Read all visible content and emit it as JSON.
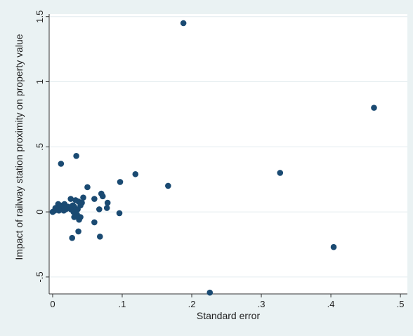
{
  "chart_data": {
    "type": "scatter",
    "title": "",
    "xlabel": "Standard error",
    "ylabel": "Impact of railway station proximity on property value",
    "xlim": [
      -0.005,
      0.51
    ],
    "ylim": [
      -0.63,
      1.52
    ],
    "x_ticks": [
      0,
      0.1,
      0.2,
      0.3,
      0.4,
      0.5
    ],
    "x_tick_labels": [
      "0",
      ".1",
      ".2",
      ".3",
      ".4",
      ".5"
    ],
    "y_ticks": [
      -0.5,
      0,
      0.5,
      1,
      1.5
    ],
    "y_tick_labels": [
      "-.5",
      "0",
      ".5",
      "1",
      "1.5"
    ],
    "grid": "horizontal",
    "marker_color": "#1a4a72",
    "plot_background": "#ffffff",
    "background": "#eaf2f3",
    "gridline_color": "#e4ecef",
    "points": [
      {
        "x": 0.188,
        "y": 1.45
      },
      {
        "x": 0.462,
        "y": 0.8
      },
      {
        "x": 0.034,
        "y": 0.43
      },
      {
        "x": 0.012,
        "y": 0.37
      },
      {
        "x": 0.327,
        "y": 0.3
      },
      {
        "x": 0.119,
        "y": 0.29
      },
      {
        "x": 0.097,
        "y": 0.23
      },
      {
        "x": 0.166,
        "y": 0.2
      },
      {
        "x": 0.05,
        "y": 0.19
      },
      {
        "x": 0.07,
        "y": 0.14
      },
      {
        "x": 0.072,
        "y": 0.12
      },
      {
        "x": 0.044,
        "y": 0.11
      },
      {
        "x": 0.06,
        "y": 0.1
      },
      {
        "x": 0.026,
        "y": 0.1
      },
      {
        "x": 0.033,
        "y": 0.09
      },
      {
        "x": 0.037,
        "y": 0.08
      },
      {
        "x": 0.079,
        "y": 0.07
      },
      {
        "x": 0.042,
        "y": 0.07
      },
      {
        "x": 0.008,
        "y": 0.06
      },
      {
        "x": 0.017,
        "y": 0.06
      },
      {
        "x": 0.029,
        "y": 0.05
      },
      {
        "x": 0.04,
        "y": 0.05
      },
      {
        "x": 0.011,
        "y": 0.05
      },
      {
        "x": 0.022,
        "y": 0.04
      },
      {
        "x": 0.031,
        "y": 0.04
      },
      {
        "x": 0.004,
        "y": 0.03
      },
      {
        "x": 0.014,
        "y": 0.03
      },
      {
        "x": 0.078,
        "y": 0.03
      },
      {
        "x": 0.019,
        "y": 0.02
      },
      {
        "x": 0.026,
        "y": 0.02
      },
      {
        "x": 0.036,
        "y": 0.02
      },
      {
        "x": 0.067,
        "y": 0.02
      },
      {
        "x": 0.003,
        "y": 0.01
      },
      {
        "x": 0.009,
        "y": 0.01
      },
      {
        "x": 0.016,
        "y": 0.01
      },
      {
        "x": 0.0,
        "y": 0.0
      },
      {
        "x": 0.03,
        "y": 0.0
      },
      {
        "x": 0.096,
        "y": -0.01
      },
      {
        "x": 0.035,
        "y": -0.02
      },
      {
        "x": 0.04,
        "y": -0.04
      },
      {
        "x": 0.031,
        "y": -0.04
      },
      {
        "x": 0.038,
        "y": -0.06
      },
      {
        "x": 0.06,
        "y": -0.08
      },
      {
        "x": 0.037,
        "y": -0.15
      },
      {
        "x": 0.068,
        "y": -0.19
      },
      {
        "x": 0.028,
        "y": -0.2
      },
      {
        "x": 0.404,
        "y": -0.27
      },
      {
        "x": 0.226,
        "y": -0.62
      }
    ]
  }
}
